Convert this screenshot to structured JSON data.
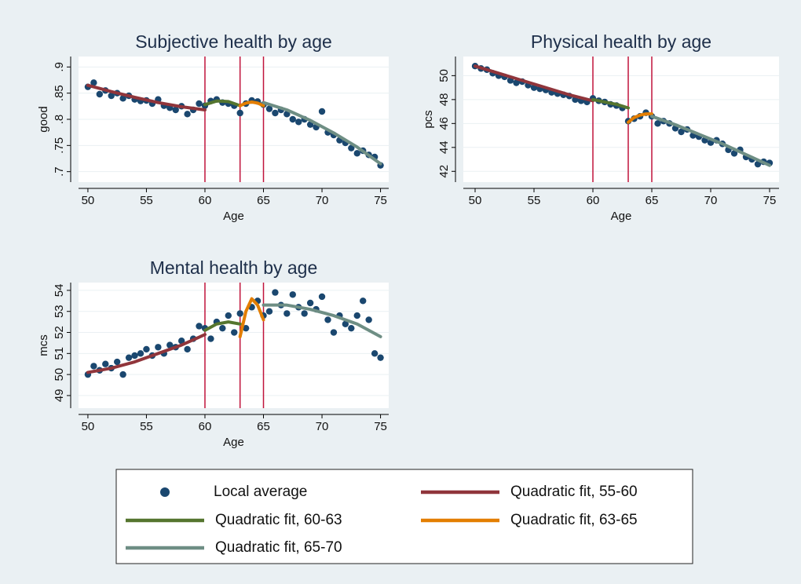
{
  "chart_data": [
    {
      "type": "scatter",
      "title": "Subjective health by age",
      "xlabel": "Age",
      "ylabel": "good",
      "xlim": [
        49.2,
        75.7
      ],
      "ylim": [
        0.68,
        0.92
      ],
      "xticks": [
        50,
        55,
        60,
        65,
        70,
        75
      ],
      "yticks": [
        {
          "value": 0.7,
          "label": ".7"
        },
        {
          "value": 0.75,
          "label": ".75"
        },
        {
          "value": 0.8,
          "label": ".8"
        },
        {
          "value": 0.85,
          "label": ".85"
        },
        {
          "value": 0.9,
          "label": ".9"
        }
      ],
      "vlines": [
        60,
        63,
        65
      ],
      "vline_color": "#c0143c",
      "series": [
        {
          "name": "Local average",
          "kind": "points",
          "color": "#1a476f",
          "x": [
            50,
            50.5,
            51,
            51.5,
            52,
            52.5,
            53,
            53.5,
            54,
            54.5,
            55,
            55.5,
            56,
            56.5,
            57,
            57.5,
            58,
            58.5,
            59,
            59.5,
            60,
            60.5,
            61,
            61.5,
            62,
            62.5,
            63,
            63.5,
            64,
            64.5,
            65,
            65.5,
            66,
            66.5,
            67,
            67.5,
            68,
            68.5,
            69,
            69.5,
            70,
            70.5,
            71,
            71.5,
            72,
            72.5,
            73,
            73.5,
            74,
            74.5,
            75
          ],
          "values": [
            0.862,
            0.87,
            0.848,
            0.855,
            0.845,
            0.85,
            0.84,
            0.845,
            0.838,
            0.835,
            0.836,
            0.83,
            0.838,
            0.826,
            0.822,
            0.818,
            0.825,
            0.81,
            0.818,
            0.83,
            0.826,
            0.835,
            0.838,
            0.832,
            0.83,
            0.826,
            0.812,
            0.83,
            0.836,
            0.834,
            0.828,
            0.82,
            0.812,
            0.818,
            0.81,
            0.8,
            0.795,
            0.8,
            0.79,
            0.785,
            0.815,
            0.775,
            0.77,
            0.76,
            0.755,
            0.745,
            0.735,
            0.74,
            0.732,
            0.728,
            0.712
          ]
        },
        {
          "name": "Quadratic fit, 55-60",
          "kind": "line",
          "color": "#90353b",
          "x": [
            50,
            52,
            54,
            56,
            58,
            60
          ],
          "values": [
            0.865,
            0.853,
            0.842,
            0.832,
            0.824,
            0.818
          ]
        },
        {
          "name": "Quadratic fit, 60-63",
          "kind": "line",
          "color": "#55752f",
          "x": [
            60,
            61,
            62,
            63
          ],
          "values": [
            0.828,
            0.835,
            0.834,
            0.826
          ]
        },
        {
          "name": "Quadratic fit, 63-65",
          "kind": "line",
          "color": "#e37e00",
          "x": [
            63,
            63.5,
            64,
            64.5,
            65
          ],
          "values": [
            0.826,
            0.831,
            0.833,
            0.831,
            0.826
          ]
        },
        {
          "name": "Quadratic fit, 65-70",
          "kind": "line",
          "color": "#6e8e84",
          "x": [
            65,
            67,
            69,
            71,
            73,
            75
          ],
          "values": [
            0.832,
            0.818,
            0.798,
            0.774,
            0.747,
            0.715
          ]
        }
      ]
    },
    {
      "type": "scatter",
      "title": "Physical health by age",
      "xlabel": "Age",
      "ylabel": "pcs",
      "xlim": [
        49,
        75.8
      ],
      "ylim": [
        41.1,
        51.6
      ],
      "xticks": [
        50,
        55,
        60,
        65,
        70,
        75
      ],
      "yticks": [
        42,
        44,
        46,
        48,
        50
      ],
      "vlines": [
        60,
        63,
        65
      ],
      "vline_color": "#c0143c",
      "series": [
        {
          "name": "Local average",
          "kind": "points",
          "color": "#1a476f",
          "x": [
            50,
            50.5,
            51,
            51.5,
            52,
            52.5,
            53,
            53.5,
            54,
            54.5,
            55,
            55.5,
            56,
            56.5,
            57,
            57.5,
            58,
            58.5,
            59,
            59.5,
            60,
            60.5,
            61,
            61.5,
            62,
            62.5,
            63,
            63.5,
            64,
            64.5,
            65,
            65.5,
            66,
            66.5,
            67,
            67.5,
            68,
            68.5,
            69,
            69.5,
            70,
            70.5,
            71,
            71.5,
            72,
            72.5,
            73,
            73.5,
            74,
            74.5,
            75
          ],
          "values": [
            50.8,
            50.6,
            50.5,
            50.2,
            50.0,
            49.9,
            49.6,
            49.4,
            49.5,
            49.2,
            49.0,
            48.9,
            48.8,
            48.6,
            48.5,
            48.4,
            48.3,
            48.0,
            47.9,
            47.8,
            48.1,
            47.9,
            47.8,
            47.6,
            47.5,
            47.3,
            46.2,
            46.4,
            46.6,
            46.9,
            46.6,
            46.0,
            46.2,
            46.0,
            45.6,
            45.3,
            45.5,
            45.0,
            44.9,
            44.6,
            44.4,
            44.6,
            44.3,
            43.8,
            43.5,
            43.8,
            43.2,
            43.0,
            42.6,
            42.8,
            42.7
          ]
        },
        {
          "name": "Quadratic fit, 55-60",
          "kind": "line",
          "color": "#90353b",
          "x": [
            50,
            52,
            54,
            56,
            58,
            60
          ],
          "values": [
            50.8,
            50.2,
            49.6,
            49.0,
            48.4,
            47.9
          ]
        },
        {
          "name": "Quadratic fit, 60-63",
          "kind": "line",
          "color": "#55752f",
          "x": [
            60,
            61,
            62,
            63
          ],
          "values": [
            48.0,
            47.8,
            47.6,
            47.3
          ]
        },
        {
          "name": "Quadratic fit, 63-65",
          "kind": "line",
          "color": "#e37e00",
          "x": [
            63,
            63.5,
            64,
            64.5,
            65
          ],
          "values": [
            46.1,
            46.5,
            46.7,
            46.8,
            46.8
          ]
        },
        {
          "name": "Quadratic fit, 65-70",
          "kind": "line",
          "color": "#6e8e84",
          "x": [
            65,
            67,
            69,
            71,
            73,
            75
          ],
          "values": [
            46.6,
            45.9,
            45.1,
            44.3,
            43.4,
            42.5
          ]
        }
      ]
    },
    {
      "type": "scatter",
      "title": "Mental health by age",
      "xlabel": "Age",
      "ylabel": "mcs",
      "xlim": [
        49.2,
        75.7
      ],
      "ylim": [
        48.4,
        54.37
      ],
      "xticks": [
        50,
        55,
        60,
        65,
        70,
        75
      ],
      "yticks": [
        49,
        50,
        51,
        52,
        53,
        54
      ],
      "vlines": [
        60,
        63,
        65
      ],
      "vline_color": "#c0143c",
      "series": [
        {
          "name": "Local average",
          "kind": "points",
          "color": "#1a476f",
          "x": [
            50,
            50.5,
            51,
            51.5,
            52,
            52.5,
            53,
            53.5,
            54,
            54.5,
            55,
            55.5,
            56,
            56.5,
            57,
            57.5,
            58,
            58.5,
            59,
            59.5,
            60,
            60.5,
            61,
            61.5,
            62,
            62.5,
            63,
            63.5,
            64,
            64.5,
            65,
            65.5,
            66,
            66.5,
            67,
            67.5,
            68,
            68.5,
            69,
            69.5,
            70,
            70.5,
            71,
            71.5,
            72,
            72.5,
            73,
            73.5,
            74,
            74.5,
            75
          ],
          "values": [
            50.0,
            50.4,
            50.2,
            50.5,
            50.3,
            50.6,
            50.0,
            50.8,
            50.9,
            51.0,
            51.2,
            50.9,
            51.3,
            51.0,
            51.4,
            51.3,
            51.6,
            51.2,
            51.7,
            52.3,
            52.2,
            51.7,
            52.5,
            52.2,
            52.8,
            52.0,
            52.9,
            52.2,
            53.2,
            53.5,
            52.8,
            53.0,
            53.9,
            53.3,
            52.9,
            53.8,
            53.2,
            52.9,
            53.4,
            53.1,
            53.7,
            52.6,
            52.0,
            52.8,
            52.4,
            52.2,
            52.8,
            53.5,
            52.6,
            51.0,
            50.8
          ]
        },
        {
          "name": "Quadratic fit, 55-60",
          "kind": "line",
          "color": "#90353b",
          "x": [
            50,
            52,
            54,
            56,
            58,
            60
          ],
          "values": [
            50.1,
            50.3,
            50.6,
            51.0,
            51.4,
            51.9
          ]
        },
        {
          "name": "Quadratic fit, 60-63",
          "kind": "line",
          "color": "#55752f",
          "x": [
            60,
            61,
            62,
            63
          ],
          "values": [
            52.1,
            52.4,
            52.5,
            52.4
          ]
        },
        {
          "name": "Quadratic fit, 63-65",
          "kind": "line",
          "color": "#e37e00",
          "x": [
            63,
            63.5,
            64,
            64.5,
            65
          ],
          "values": [
            51.8,
            53.0,
            53.6,
            53.3,
            52.6
          ]
        },
        {
          "name": "Quadratic fit, 65-70",
          "kind": "line",
          "color": "#6e8e84",
          "x": [
            65,
            67,
            69,
            71,
            73,
            75
          ],
          "values": [
            53.3,
            53.3,
            53.1,
            52.8,
            52.4,
            51.8
          ]
        }
      ]
    }
  ]
}
